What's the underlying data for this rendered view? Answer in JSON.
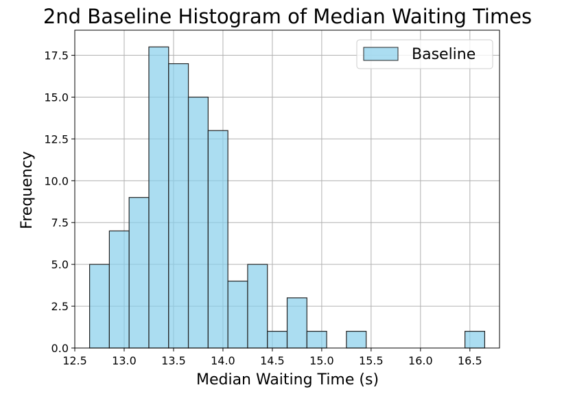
{
  "chart_data": {
    "type": "bar",
    "title": "2nd Baseline Histogram of Median Waiting Times",
    "xlabel": "Median Waiting Time (s)",
    "ylabel": "Frequency",
    "xlim": [
      12.5,
      16.8
    ],
    "ylim": [
      0,
      19
    ],
    "grid": true,
    "legend_position": "top-right",
    "x_ticks": [
      12.5,
      13.0,
      13.5,
      14.0,
      14.5,
      15.0,
      15.5,
      16.0,
      16.5
    ],
    "x_tick_labels": [
      "12.5",
      "13.0",
      "13.5",
      "14.0",
      "14.5",
      "15.0",
      "15.5",
      "16.0",
      "16.5"
    ],
    "y_ticks": [
      0,
      2.5,
      5,
      7.5,
      10,
      12.5,
      15,
      17.5
    ],
    "y_tick_labels": [
      "0.0",
      "2.5",
      "5.0",
      "7.5",
      "10.0",
      "12.5",
      "15.0",
      "17.5"
    ],
    "series": [
      {
        "name": "Baseline",
        "color": "#87ceeb",
        "edge_color": "#222222",
        "bin_start": 12.65,
        "bin_width": 0.2,
        "values": [
          5,
          7,
          9,
          18,
          17,
          15,
          13,
          4,
          5,
          1,
          3,
          1,
          0,
          1,
          0,
          0,
          0,
          0,
          0,
          1
        ]
      }
    ]
  }
}
